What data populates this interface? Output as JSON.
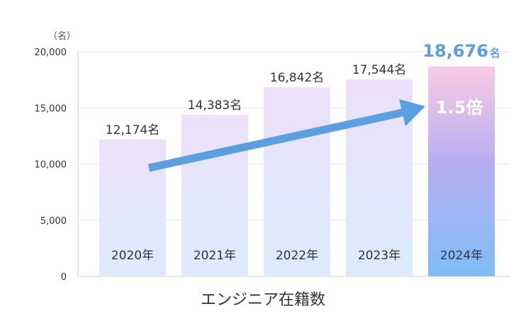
{
  "chart_data": {
    "type": "bar",
    "title": "",
    "xlabel": "エンジニア在籍数",
    "ylabel": "（名）",
    "ylim": [
      0,
      20000
    ],
    "yticks": [
      0,
      5000,
      10000,
      15000,
      20000
    ],
    "ytick_labels": [
      "0",
      "5,000",
      "10,000",
      "15,000",
      "20,000"
    ],
    "grid": true,
    "categories": [
      "2020年",
      "2021年",
      "2022年",
      "2023年",
      "2024年"
    ],
    "values": [
      12174,
      14383,
      16842,
      17544,
      18676
    ],
    "value_labels": [
      "12,174名",
      "14,383名",
      "16,842名",
      "17,544名",
      "18,676"
    ],
    "highlight_index": 4,
    "highlight_unit": "名",
    "annotation": "1.5倍",
    "colors": {
      "bar_top": "#ece0fa",
      "bar_bottom": "#dcebfd",
      "highlight_top": "#f9cbe6",
      "highlight_mid": "#b9aef0",
      "highlight_bottom": "#7fbdf7",
      "arrow": "#5b9fe0",
      "grid": "#e6e6e6"
    }
  }
}
